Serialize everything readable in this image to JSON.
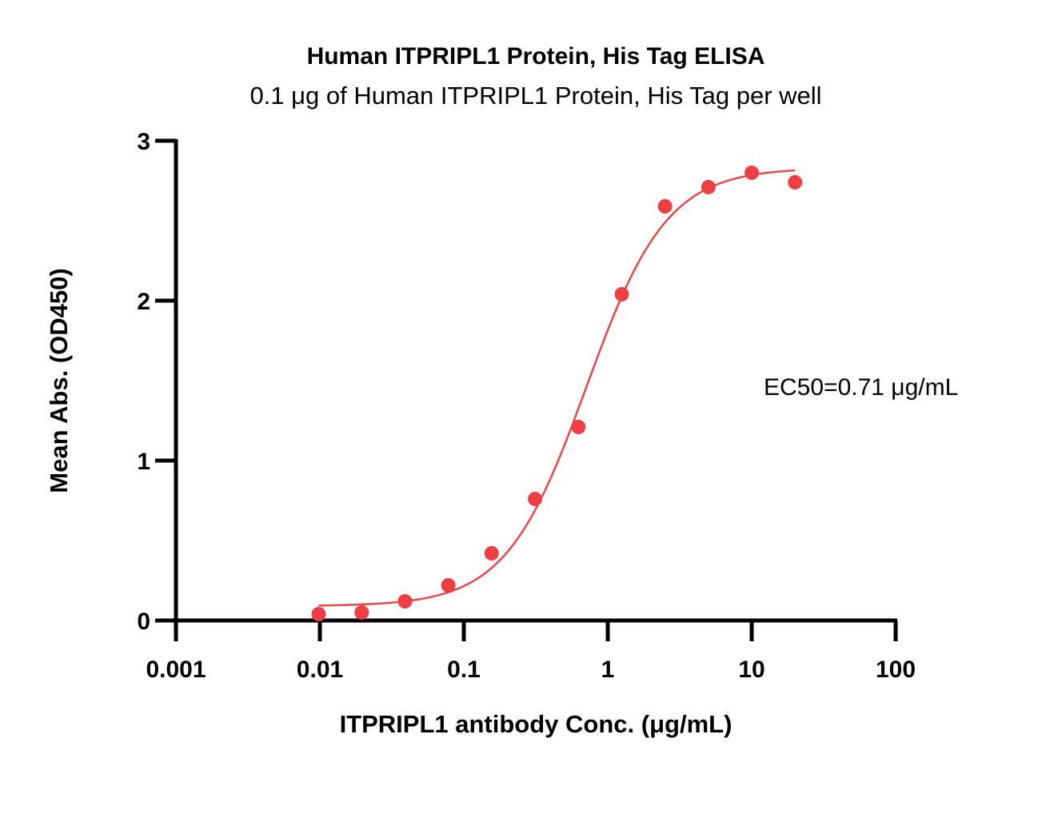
{
  "chart_data": {
    "type": "scatter",
    "title": "Human ITPRIPL1 Protein, His Tag ELISA",
    "subtitle": "0.1 μg of Human ITPRIPL1 Protein, His Tag per well",
    "xlabel": "ITPRIPL1 antibody Conc. (μg/mL)",
    "ylabel": "Mean Abs. (OD450)",
    "xscale": "log",
    "xlim": [
      0.001,
      100
    ],
    "ylim": [
      0,
      3
    ],
    "xticks": [
      0.001,
      0.01,
      0.1,
      1,
      10,
      100
    ],
    "xtick_labels": [
      "0.001",
      "0.01",
      "0.1",
      "1",
      "10",
      "100"
    ],
    "yticks": [
      0,
      1,
      2,
      3
    ],
    "ytick_labels": [
      "0",
      "1",
      "2",
      "3"
    ],
    "grid": false,
    "annotation": "EC50=0.71 μg/mL",
    "series": [
      {
        "name": "ITPRIPL1 antibody",
        "color": "#ee3f45",
        "x": [
          0.0098,
          0.0195,
          0.039,
          0.078,
          0.156,
          0.3125,
          0.625,
          1.25,
          2.5,
          5,
          10,
          20
        ],
        "y": [
          0.04,
          0.05,
          0.12,
          0.22,
          0.42,
          0.76,
          1.21,
          2.04,
          2.59,
          2.71,
          2.8,
          2.74
        ]
      }
    ],
    "fit": {
      "model": "4PL",
      "bottom": 0.09,
      "top": 2.83,
      "ec50": 0.71,
      "hill": 1.55,
      "x_range": [
        0.0098,
        20
      ],
      "color": "#e8474a"
    }
  }
}
